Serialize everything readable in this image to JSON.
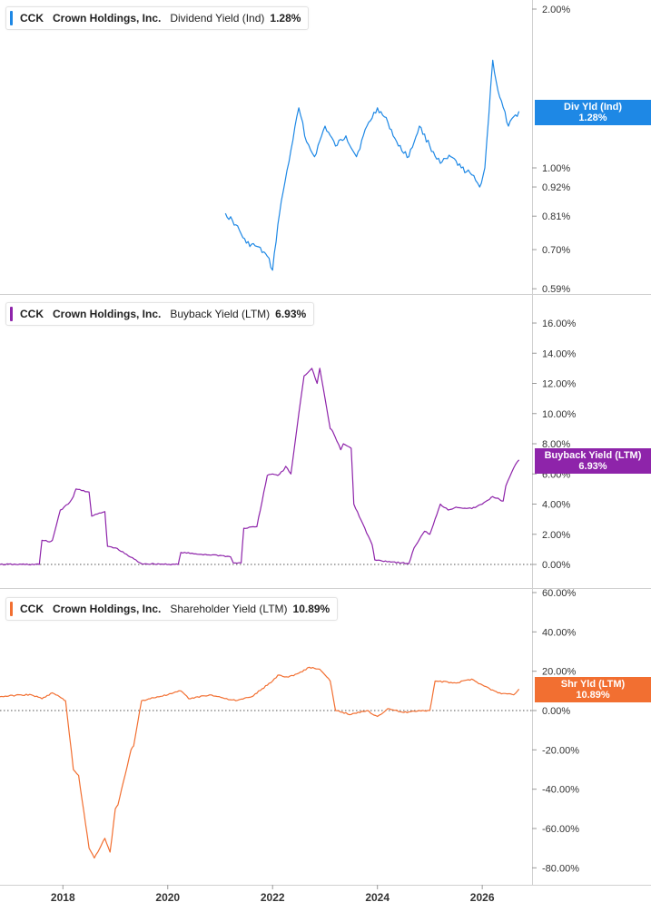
{
  "chart_data": [
    {
      "type": "line",
      "ticker": "CCK",
      "company": "Crown Holdings, Inc.",
      "metric": "Dividend Yield (Ind)",
      "current_value": "1.28%",
      "tag_label": "Div Yld (Ind)",
      "tag_value": "1.28%",
      "color": "#1e88e5",
      "scale": "log",
      "yticks": [
        "2.00%",
        "1.00%",
        "0.92%",
        "0.81%",
        "0.70%",
        "0.59%"
      ],
      "ytick_values": [
        2.0,
        1.0,
        0.92,
        0.81,
        0.7,
        0.59
      ],
      "x": [
        2021.1,
        2021.3,
        2021.5,
        2021.7,
        2021.9,
        2022.0,
        2022.1,
        2022.2,
        2022.35,
        2022.5,
        2022.65,
        2022.8,
        2023.0,
        2023.2,
        2023.4,
        2023.6,
        2023.8,
        2024.0,
        2024.2,
        2024.4,
        2024.6,
        2024.8,
        2025.0,
        2025.2,
        2025.4,
        2025.6,
        2025.8,
        2025.95,
        2026.05,
        2026.2,
        2026.3,
        2026.5,
        2026.7
      ],
      "values": [
        0.82,
        0.78,
        0.72,
        0.71,
        0.68,
        0.64,
        0.78,
        0.9,
        1.08,
        1.3,
        1.12,
        1.05,
        1.2,
        1.1,
        1.15,
        1.05,
        1.2,
        1.3,
        1.22,
        1.1,
        1.05,
        1.2,
        1.1,
        1.02,
        1.05,
        1.0,
        0.97,
        0.92,
        1.0,
        1.6,
        1.4,
        1.2,
        1.28
      ]
    },
    {
      "type": "line",
      "ticker": "CCK",
      "company": "Crown Holdings, Inc.",
      "metric": "Buyback Yield (LTM)",
      "current_value": "6.93%",
      "tag_label": "Buyback Yield (LTM)",
      "tag_value": "6.93%",
      "color": "#8e24aa",
      "ylim": [
        -2,
        17
      ],
      "yticks": [
        "16.00%",
        "14.00%",
        "12.00%",
        "10.00%",
        "8.00%",
        "6.00%",
        "4.00%",
        "2.00%",
        "0.00%"
      ],
      "ytick_values": [
        16,
        14,
        12,
        10,
        8,
        6,
        4,
        2,
        0
      ],
      "x": [
        2016.8,
        2017.55,
        2017.6,
        2017.75,
        2017.8,
        2017.95,
        2018.1,
        2018.2,
        2018.25,
        2018.5,
        2018.55,
        2018.8,
        2018.85,
        2019.0,
        2019.5,
        2020.2,
        2020.25,
        2020.5,
        2021.0,
        2021.2,
        2021.25,
        2021.4,
        2021.45,
        2021.7,
        2021.9,
        2022.0,
        2022.1,
        2022.2,
        2022.25,
        2022.35,
        2022.5,
        2022.6,
        2022.75,
        2022.85,
        2022.9,
        2023.0,
        2023.1,
        2023.15,
        2023.3,
        2023.35,
        2023.5,
        2023.55,
        2023.9,
        2023.95,
        2024.6,
        2024.7,
        2024.9,
        2025.0,
        2025.2,
        2025.35,
        2025.5,
        2025.8,
        2026.0,
        2026.2,
        2026.4,
        2026.45,
        2026.6,
        2026.7
      ],
      "values": [
        0,
        0,
        1.6,
        1.5,
        1.6,
        3.6,
        4.0,
        4.5,
        5.0,
        4.8,
        3.2,
        3.5,
        1.2,
        1.1,
        0.05,
        0.0,
        0.8,
        0.7,
        0.6,
        0.5,
        0.1,
        0.1,
        2.4,
        2.5,
        5.9,
        6.0,
        5.9,
        6.2,
        6.5,
        6.0,
        10.0,
        12.5,
        13.0,
        12.0,
        13.0,
        11.0,
        9.0,
        8.8,
        7.6,
        8.0,
        7.7,
        4.0,
        1.3,
        0.3,
        0.05,
        1.1,
        2.2,
        2.0,
        4.0,
        3.6,
        3.8,
        3.7,
        4.0,
        4.5,
        4.2,
        5.2,
        6.4,
        6.93
      ]
    },
    {
      "type": "line",
      "ticker": "CCK",
      "company": "Crown Holdings, Inc.",
      "metric": "Shareholder Yield (LTM)",
      "current_value": "10.89%",
      "tag_label": "Shr Yld (LTM)",
      "tag_value": "10.89%",
      "color": "#f26f31",
      "ylim": [
        -86,
        63
      ],
      "yticks": [
        "60.00%",
        "40.00%",
        "20.00%",
        "0.00%",
        "-20.00%",
        "-40.00%",
        "-60.00%",
        "-80.00%"
      ],
      "ytick_values": [
        60,
        40,
        20,
        0,
        -20,
        -40,
        -60,
        -80
      ],
      "x": [
        2016.8,
        2017.2,
        2017.4,
        2017.6,
        2017.8,
        2018.0,
        2018.05,
        2018.2,
        2018.3,
        2018.5,
        2018.6,
        2018.8,
        2018.9,
        2019.0,
        2019.05,
        2019.3,
        2019.35,
        2019.5,
        2019.8,
        2020.0,
        2020.25,
        2020.4,
        2020.8,
        2021.3,
        2021.6,
        2022.0,
        2022.1,
        2022.3,
        2022.5,
        2022.7,
        2022.9,
        2023.1,
        2023.2,
        2023.5,
        2023.8,
        2024.0,
        2024.2,
        2024.5,
        2024.8,
        2025.0,
        2025.1,
        2025.5,
        2025.8,
        2026.0,
        2026.3,
        2026.6,
        2026.7
      ],
      "values": [
        7,
        8,
        8,
        6,
        9,
        6,
        5,
        -30,
        -33,
        -70,
        -75,
        -65,
        -72,
        -50,
        -48,
        -20,
        -18,
        5,
        7,
        8,
        10,
        6,
        8,
        5,
        7,
        15,
        18,
        17,
        19,
        22,
        21,
        15,
        0,
        -2,
        0,
        -3,
        1,
        -1,
        0,
        0,
        15,
        14,
        16,
        13,
        9,
        8,
        10.89
      ]
    }
  ],
  "x_axis": {
    "ticks": [
      "2018",
      "2020",
      "2022",
      "2024",
      "2026"
    ],
    "tick_values": [
      2018,
      2020,
      2022,
      2024,
      2026
    ],
    "range": [
      2016.8,
      2026.95
    ]
  }
}
